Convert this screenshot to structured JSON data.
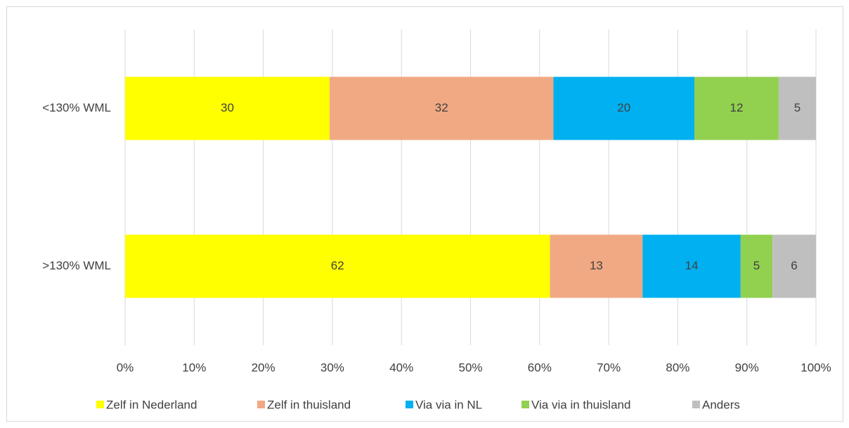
{
  "chart_data": {
    "type": "stacked_bar_horizontal",
    "categories": [
      "<130% WML",
      ">130% WML"
    ],
    "series": [
      {
        "name": "Zelf in Nederland",
        "color": "#ffff00",
        "values": [
          29.6,
          61.5
        ],
        "value_labels": [
          "30",
          "62"
        ]
      },
      {
        "name": "Zelf in thuisland",
        "color": "#f1a983",
        "values": [
          32.4,
          13.4
        ],
        "value_labels": [
          "32",
          "13"
        ]
      },
      {
        "name": "Via via in NL",
        "color": "#00b0f0",
        "values": [
          20.4,
          14.2
        ],
        "value_labels": [
          "20",
          "14"
        ]
      },
      {
        "name": "Via via in thuisland",
        "color": "#92d050",
        "values": [
          12.2,
          4.6
        ],
        "value_labels": [
          "12",
          "5"
        ]
      },
      {
        "name": "Anders",
        "color": "#bfbfbf",
        "values": [
          5.4,
          6.3
        ],
        "value_labels": [
          "5",
          "6"
        ]
      }
    ],
    "xlim": [
      0,
      100
    ],
    "xticks": [
      {
        "value": 0,
        "label": "0%"
      },
      {
        "value": 10,
        "label": "10%"
      },
      {
        "value": 20,
        "label": "20%"
      },
      {
        "value": 30,
        "label": "30%"
      },
      {
        "value": 40,
        "label": "40%"
      },
      {
        "value": 50,
        "label": "50%"
      },
      {
        "value": 60,
        "label": "60%"
      },
      {
        "value": 70,
        "label": "70%"
      },
      {
        "value": 80,
        "label": "80%"
      },
      {
        "value": 90,
        "label": "90%"
      },
      {
        "value": 100,
        "label": "100%"
      }
    ],
    "grid": true,
    "legend": "bottom"
  }
}
